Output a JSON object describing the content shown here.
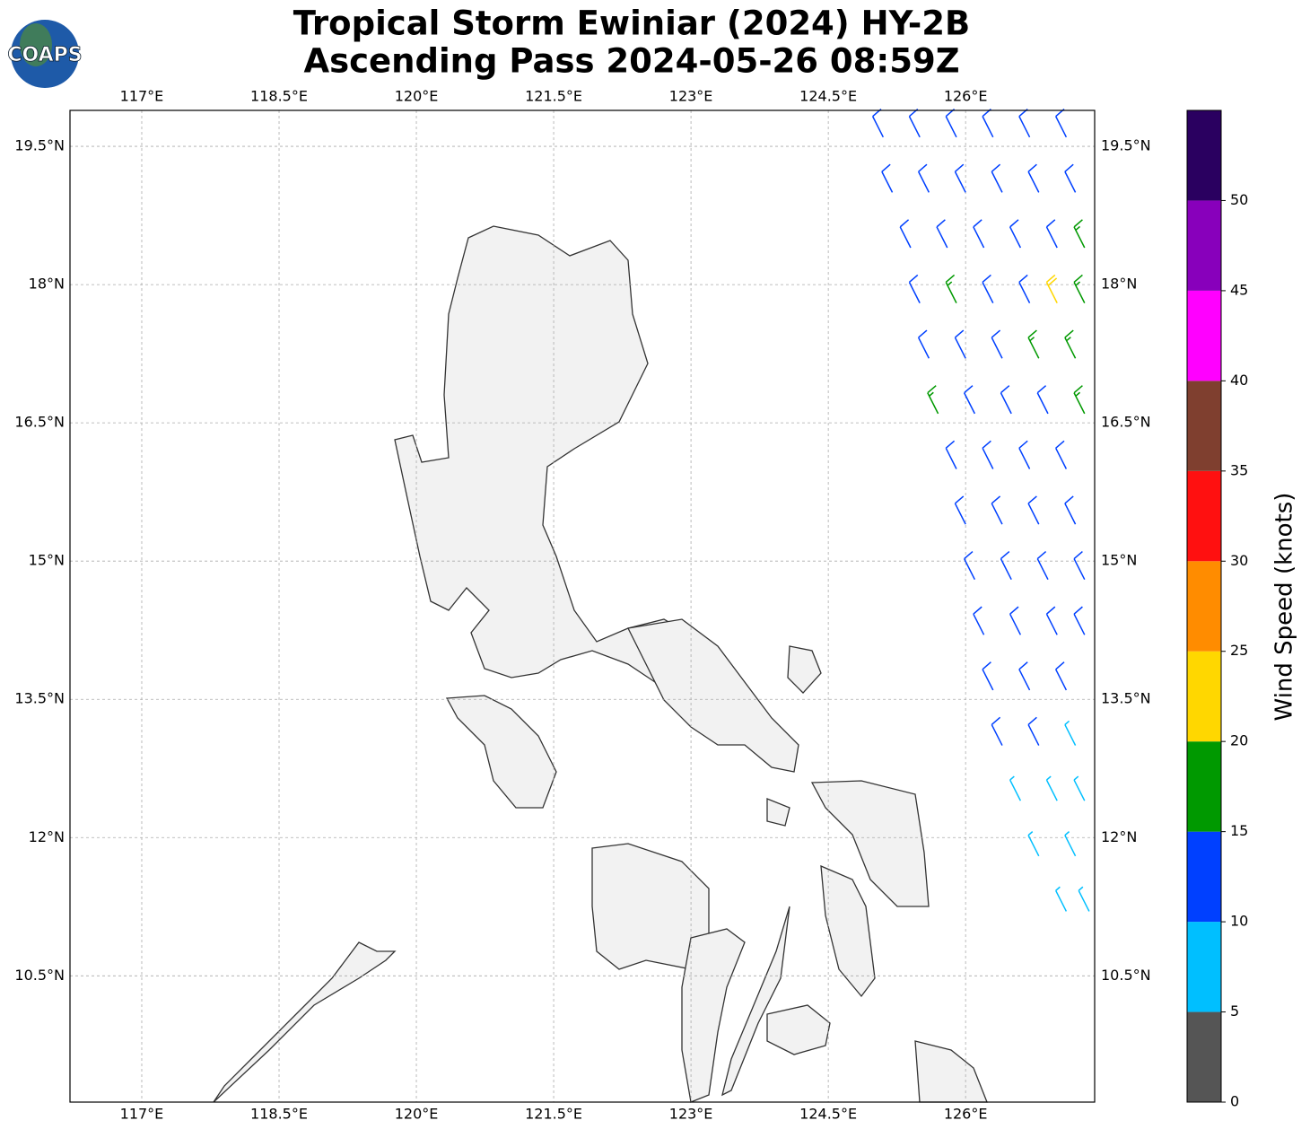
{
  "logo": "COAPS",
  "title": [
    "Tropical Storm Ewiniar (2024) HY-2B",
    "Ascending Pass 2024-05-26 08:59Z"
  ],
  "map": {
    "xlim": [
      116.216,
      127.41
    ],
    "ylim": [
      9.13,
      19.89
    ],
    "xticks": [
      {
        "value": 117,
        "label": "117°E"
      },
      {
        "value": 118.5,
        "label": "118.5°E"
      },
      {
        "value": 120,
        "label": "120°E"
      },
      {
        "value": 121.5,
        "label": "121.5°E"
      },
      {
        "value": 123,
        "label": "123°E"
      },
      {
        "value": 124.5,
        "label": "124.5°E"
      },
      {
        "value": 126,
        "label": "126°E"
      }
    ],
    "yticks": [
      {
        "value": 10.5,
        "label": "10.5°N"
      },
      {
        "value": 12,
        "label": "12°N"
      },
      {
        "value": 13.5,
        "label": "13.5°N"
      },
      {
        "value": 15,
        "label": "15°N"
      },
      {
        "value": 16.5,
        "label": "16.5°N"
      },
      {
        "value": 18,
        "label": "18°N"
      },
      {
        "value": 19.5,
        "label": "19.5°N"
      }
    ],
    "barbs": {
      "lon": [
        125.1,
        125.5,
        125.9,
        126.3,
        126.7,
        127.1,
        125.2,
        125.6,
        126.0,
        126.4,
        126.8,
        127.2,
        125.4,
        125.8,
        126.2,
        126.6,
        127.0,
        127.3,
        125.5,
        125.9,
        126.3,
        126.7,
        127.0,
        127.3,
        125.6,
        126.0,
        126.4,
        126.8,
        127.2,
        125.7,
        126.1,
        126.5,
        126.9,
        127.3,
        125.9,
        126.3,
        126.7,
        127.1,
        126.0,
        126.4,
        126.8,
        127.2,
        126.1,
        126.5,
        126.9,
        127.3,
        126.2,
        126.6,
        127.0,
        127.3,
        126.3,
        126.7,
        127.1,
        126.4,
        126.8,
        127.2,
        126.6,
        127.0,
        127.3,
        126.8,
        127.2,
        127.1,
        127.35
      ],
      "lat": [
        19.6,
        19.6,
        19.6,
        19.6,
        19.6,
        19.6,
        19.0,
        19.0,
        19.0,
        19.0,
        19.0,
        19.0,
        18.4,
        18.4,
        18.4,
        18.4,
        18.4,
        18.4,
        17.8,
        17.8,
        17.8,
        17.8,
        17.8,
        17.8,
        17.2,
        17.2,
        17.2,
        17.2,
        17.2,
        16.6,
        16.6,
        16.6,
        16.6,
        16.6,
        16.0,
        16.0,
        16.0,
        16.0,
        15.4,
        15.4,
        15.4,
        15.4,
        14.8,
        14.8,
        14.8,
        14.8,
        14.2,
        14.2,
        14.2,
        14.2,
        13.6,
        13.6,
        13.6,
        13.0,
        13.0,
        13.0,
        12.4,
        12.4,
        12.4,
        11.8,
        11.8,
        11.2,
        11.2
      ],
      "speed": [
        12,
        12,
        12,
        12,
        12,
        12,
        12,
        12,
        12,
        12,
        12,
        12,
        12,
        12,
        12,
        12,
        13,
        17,
        12,
        17,
        12,
        12,
        22,
        17,
        12,
        12,
        12,
        17,
        17,
        17,
        12,
        12,
        12,
        17,
        12,
        12,
        12,
        12,
        12,
        12,
        12,
        12,
        12,
        12,
        12,
        12,
        12,
        12,
        12,
        12,
        12,
        12,
        12,
        12,
        12,
        8,
        8,
        8,
        8,
        8,
        8,
        8,
        8
      ]
    }
  },
  "colorbar": {
    "label": "Wind Speed (knots)",
    "bounds": [
      0,
      5,
      10,
      15,
      20,
      25,
      30,
      35,
      40,
      45,
      50,
      55
    ],
    "colors": [
      "#555555",
      "#00bfff",
      "#0040ff",
      "#009900",
      "#ffd700",
      "#ff8c00",
      "#ff1010",
      "#7f3f2f",
      "#ff00ff",
      "#8800bb",
      "#2a0060"
    ],
    "ticks": [
      0,
      5,
      10,
      15,
      20,
      25,
      30,
      35,
      40,
      45,
      50
    ]
  }
}
